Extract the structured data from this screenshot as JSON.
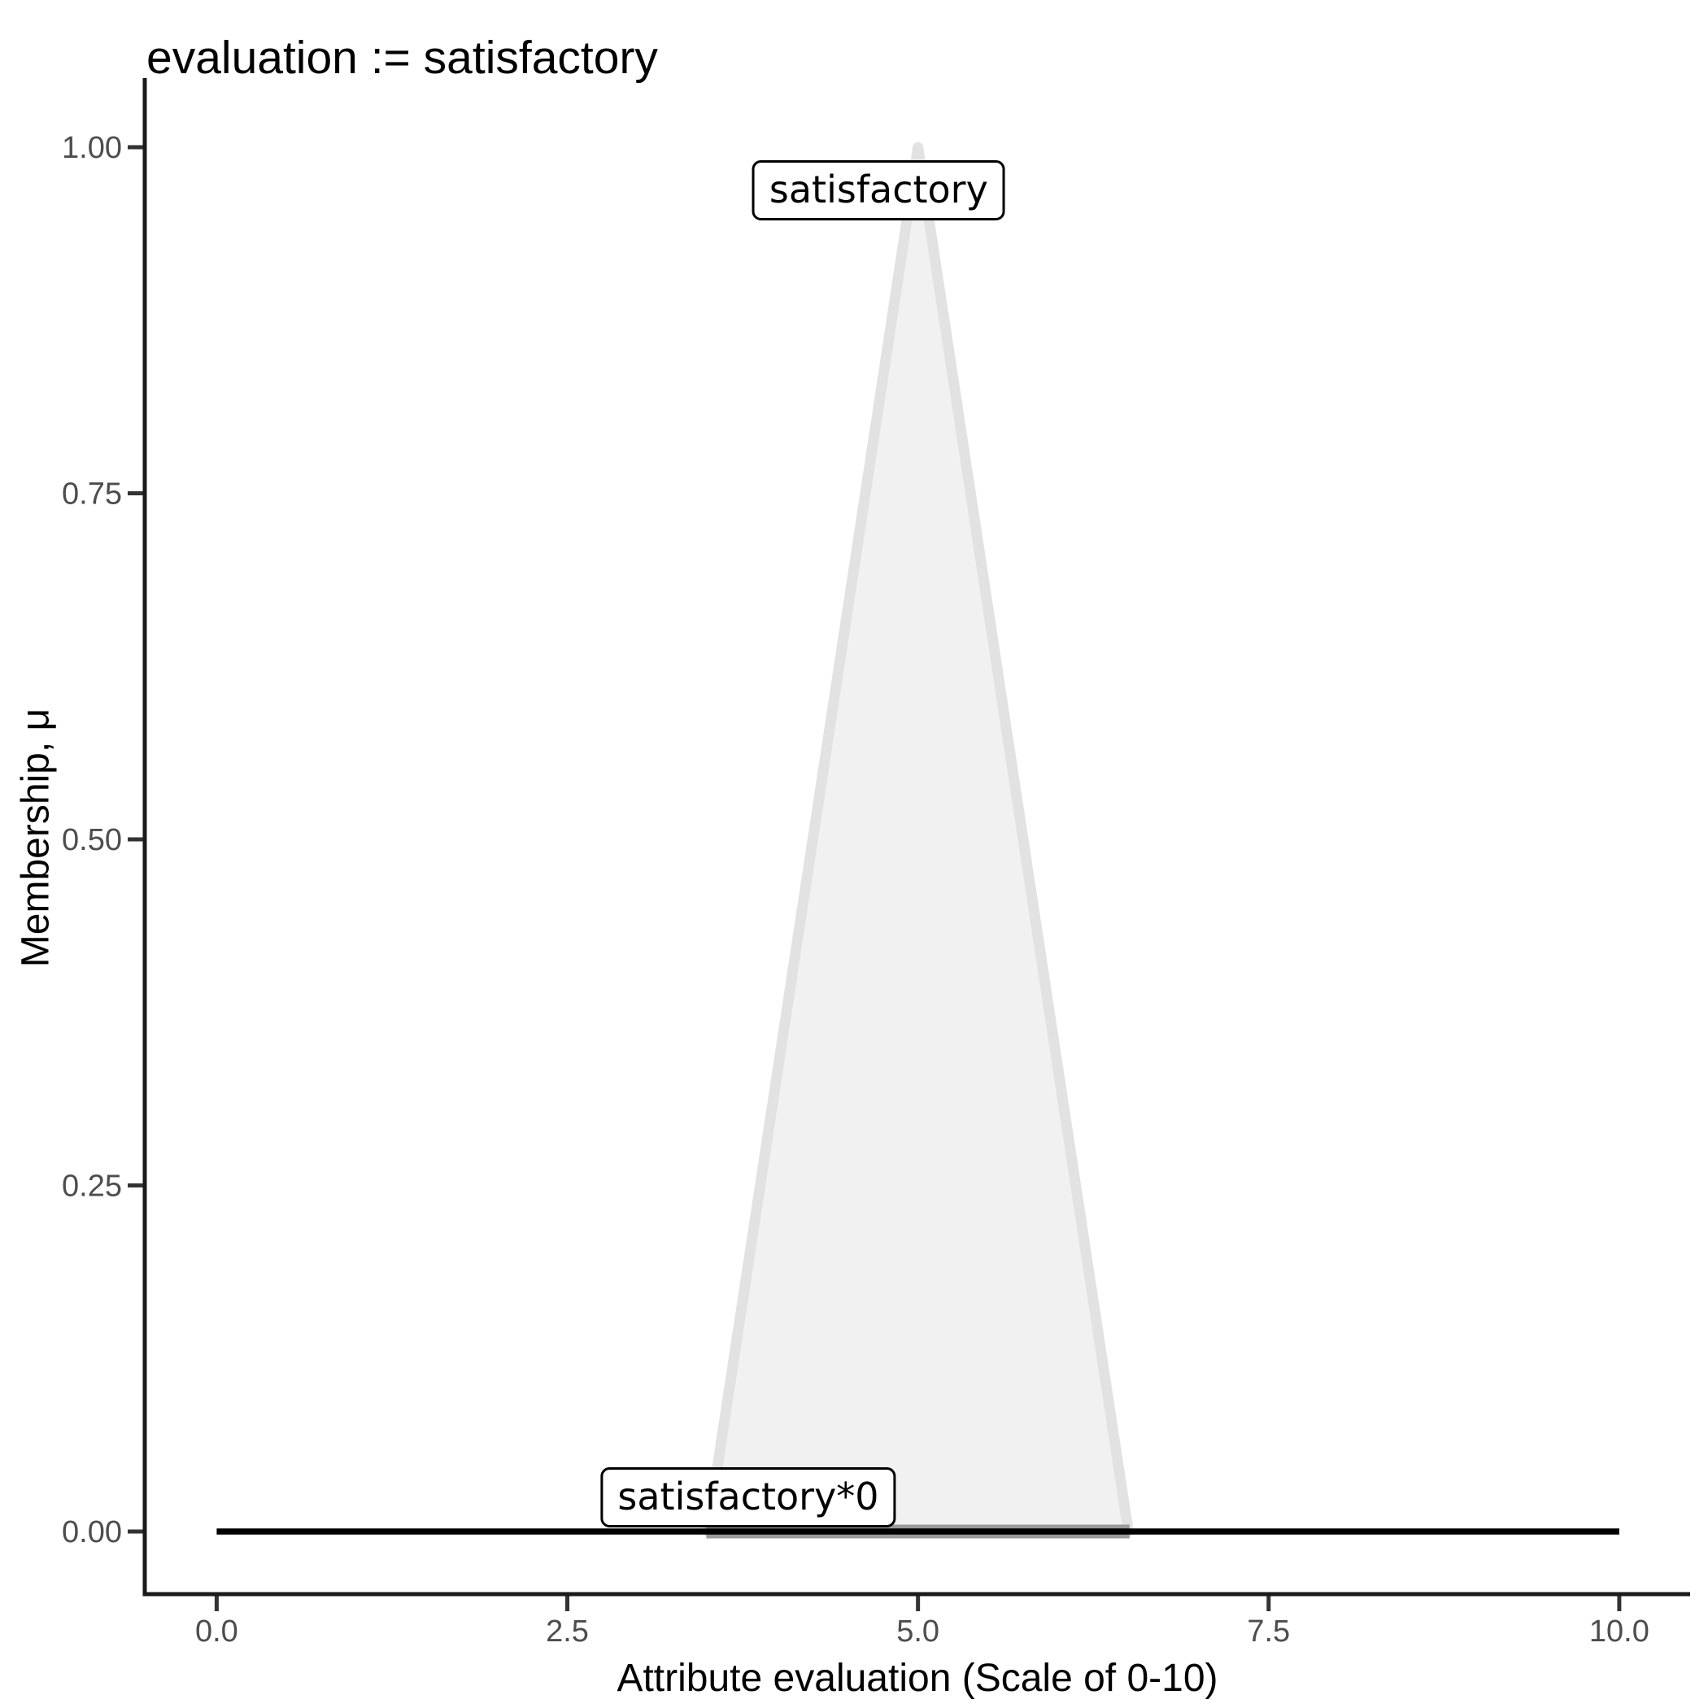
{
  "chart_data": {
    "type": "area",
    "title": "evaluation := satisfactory",
    "xlabel": "Attribute evaluation (Scale of 0-10)",
    "ylabel": "Membership, μ",
    "xlim": [
      0,
      10
    ],
    "ylim": [
      0,
      1
    ],
    "grid": false,
    "legend": "none",
    "x_ticks": [
      {
        "value": 0,
        "label": "0.0"
      },
      {
        "value": 2.5,
        "label": "2.5"
      },
      {
        "value": 5,
        "label": "5.0"
      },
      {
        "value": 7.5,
        "label": "7.5"
      },
      {
        "value": 10,
        "label": "10.0"
      }
    ],
    "y_ticks": [
      {
        "value": 0,
        "label": "0.00"
      },
      {
        "value": 0.25,
        "label": "0.25"
      },
      {
        "value": 0.5,
        "label": "0.50"
      },
      {
        "value": 0.75,
        "label": "0.75"
      },
      {
        "value": 1,
        "label": "1.00"
      }
    ],
    "series": [
      {
        "name": "satisfactory",
        "kind": "membership-triangle",
        "points": [
          [
            3.5,
            0
          ],
          [
            5,
            1
          ],
          [
            6.5,
            0
          ]
        ],
        "fill": "#F1F1F1",
        "stroke": "#E2E2E2",
        "base_stroke": "#9A9A9A"
      },
      {
        "name": "satisfactory*0",
        "kind": "zero-line",
        "points": [
          [
            0,
            0
          ],
          [
            10,
            0
          ]
        ],
        "stroke": "#000000"
      }
    ],
    "annotations": [
      {
        "id": "satisfactory",
        "label": "satisfactory",
        "x": 4.72,
        "y": 0.969
      },
      {
        "id": "satisfactory-0",
        "label": "satisfactory*0",
        "x": 3.79,
        "y": 0.0247
      }
    ],
    "colors": {
      "axis_line": "#1A1A1A",
      "tick_mark": "#333333",
      "tick_label": "#4D4D4D",
      "background": "#FFFFFF"
    }
  },
  "title": "evaluation := satisfactory"
}
